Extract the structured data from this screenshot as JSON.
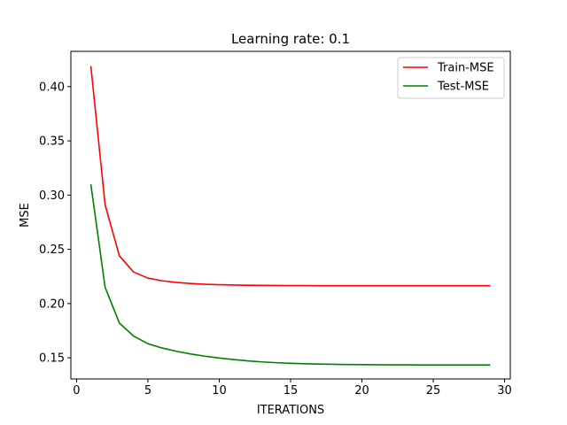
{
  "chart_data": {
    "type": "line",
    "title": "Learning rate: 0.1",
    "xlabel": "ITERATIONS",
    "ylabel": "MSE",
    "xlim": [
      -0.4,
      30.4
    ],
    "ylim": [
      0.1305,
      0.4325
    ],
    "xticks": [
      0,
      5,
      10,
      15,
      20,
      25,
      30
    ],
    "xtick_labels": [
      "0",
      "5",
      "10",
      "15",
      "20",
      "25",
      "30"
    ],
    "yticks": [
      0.15,
      0.2,
      0.25,
      0.3,
      0.35,
      0.4
    ],
    "ytick_labels": [
      "0.15",
      "0.20",
      "0.25",
      "0.30",
      "0.35",
      "0.40"
    ],
    "grid": false,
    "legend_position": "top-right",
    "x": [
      1,
      2,
      3,
      4,
      5,
      6,
      7,
      8,
      9,
      10,
      11,
      12,
      13,
      14,
      15,
      16,
      17,
      18,
      19,
      20,
      21,
      22,
      23,
      24,
      25,
      26,
      27,
      28,
      29
    ],
    "series": [
      {
        "name": "Train-MSE",
        "color": "#ff0000",
        "values": [
          0.419,
          0.291,
          0.244,
          0.229,
          0.2235,
          0.221,
          0.2195,
          0.2185,
          0.2178,
          0.2174,
          0.2171,
          0.2169,
          0.2168,
          0.2167,
          0.2166,
          0.2166,
          0.2165,
          0.2165,
          0.2165,
          0.2165,
          0.2165,
          0.2165,
          0.2165,
          0.2165,
          0.2165,
          0.2165,
          0.2165,
          0.2165,
          0.2165
        ]
      },
      {
        "name": "Test-MSE",
        "color": "#008000",
        "values": [
          0.31,
          0.215,
          0.182,
          0.17,
          0.163,
          0.159,
          0.156,
          0.1535,
          0.1515,
          0.1498,
          0.1484,
          0.1472,
          0.1462,
          0.1455,
          0.1449,
          0.1445,
          0.1442,
          0.144,
          0.1438,
          0.1437,
          0.1436,
          0.1435,
          0.1435,
          0.1434,
          0.1434,
          0.1434,
          0.1434,
          0.1434,
          0.1434
        ]
      }
    ]
  }
}
